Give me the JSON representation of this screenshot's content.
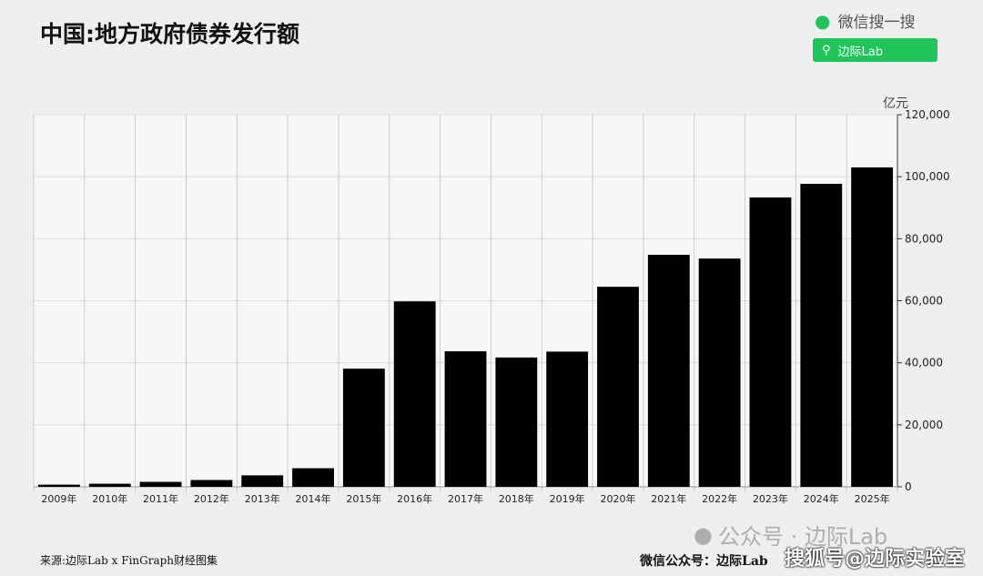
{
  "title": "中国:地方政府债券发行额",
  "wechat_search": {
    "label": "微信搜一搜",
    "button": "边际Lab"
  },
  "footer": {
    "source": "来源:边际Lab x FinGraph财经图集",
    "wechat": "微信公众号：边际Lab"
  },
  "watermarks": {
    "mp": "公众号 · 边际Lab",
    "sohu": "搜狐号@边际实验室"
  },
  "chart_data": {
    "type": "bar",
    "title": "中国:地方政府债券发行额",
    "ylabel": "亿元",
    "categories": [
      "2009年",
      "2010年",
      "2011年",
      "2012年",
      "2013年",
      "2014年",
      "2015年",
      "2016年",
      "2017年",
      "2018年",
      "2019年",
      "2020年",
      "2021年",
      "2022年",
      "2023年",
      "2024年",
      "2025年"
    ],
    "values": [
      700,
      1000,
      1600,
      2200,
      3700,
      6000,
      38100,
      59800,
      43700,
      41700,
      43600,
      64500,
      74800,
      73600,
      93300,
      97700,
      103000
    ],
    "ylim": [
      0,
      120000
    ],
    "yticks": [
      0,
      20000,
      40000,
      60000,
      80000,
      100000,
      120000
    ],
    "ytick_labels": [
      "0",
      "20,000",
      "40,000",
      "60,000",
      "80,000",
      "100,000",
      "120,000"
    ],
    "y_axis_side": "right",
    "grid": true,
    "bar_color": "#000000"
  }
}
